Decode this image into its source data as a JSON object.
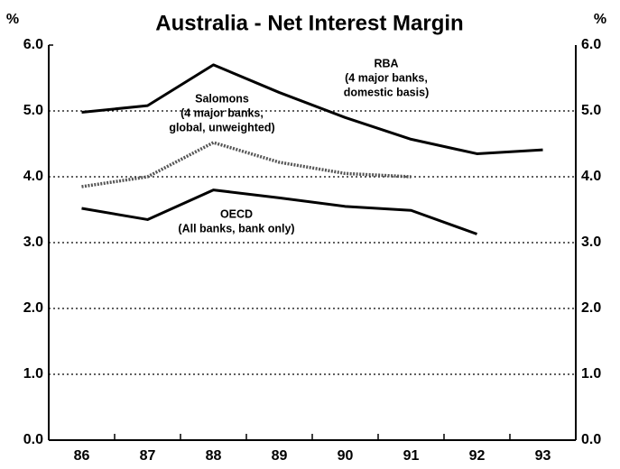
{
  "chart_data": {
    "type": "line",
    "title": "Australia - Net Interest Margin",
    "y_label": "%",
    "y2_label": "%",
    "categories": [
      "86",
      "87",
      "88",
      "89",
      "90",
      "91",
      "92",
      "93"
    ],
    "series": [
      {
        "name": "RBA",
        "color": "#000000",
        "style": "solid",
        "values": [
          4.98,
          5.08,
          5.7,
          5.28,
          4.9,
          4.57,
          4.35,
          4.41
        ]
      },
      {
        "name": "Salomons",
        "color": "#555555",
        "style": "dotted",
        "values": [
          3.85,
          4.0,
          4.52,
          4.22,
          4.05,
          4.0,
          null,
          null
        ]
      },
      {
        "name": "OECD",
        "color": "#000000",
        "style": "solid",
        "values": [
          3.52,
          3.35,
          3.8,
          3.68,
          3.55,
          3.49,
          3.13,
          null
        ]
      }
    ],
    "annotations": [
      {
        "lines": [
          "RBA",
          "(4 major banks,",
          "domestic basis)"
        ]
      },
      {
        "lines": [
          "Salomons",
          "(4 major banks,",
          "global, unweighted)"
        ]
      },
      {
        "lines": [
          "OECD",
          "(All banks, bank only)"
        ]
      }
    ],
    "ylim": [
      0,
      6
    ],
    "yticks": [
      {
        "value": 0,
        "label": "0.0"
      },
      {
        "value": 1,
        "label": "1.0"
      },
      {
        "value": 2,
        "label": "2.0"
      },
      {
        "value": 3,
        "label": "3.0"
      },
      {
        "value": 4,
        "label": "4.0"
      },
      {
        "value": 5,
        "label": "5.0"
      },
      {
        "value": 6,
        "label": "6.0"
      }
    ],
    "grid": true
  }
}
